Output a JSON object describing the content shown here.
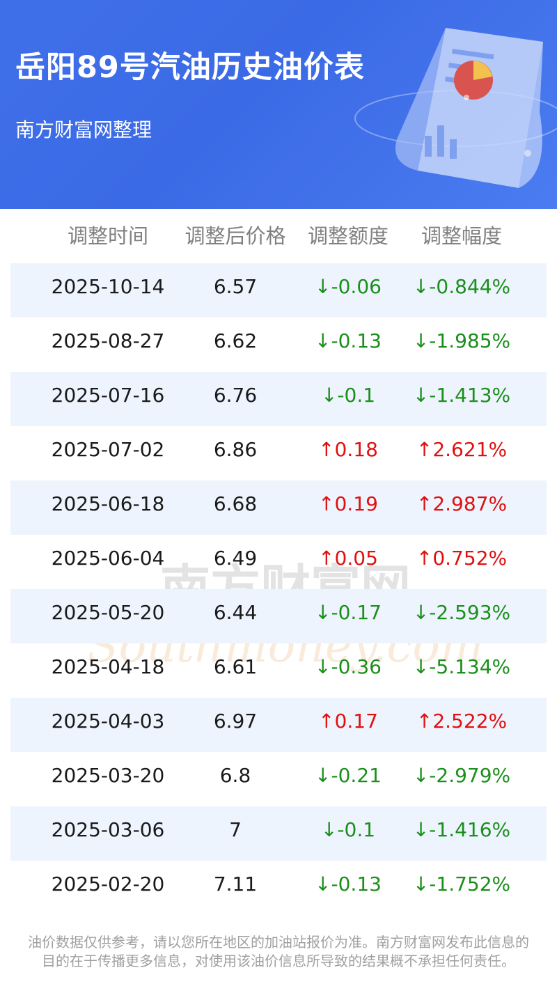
{
  "header": {
    "title": "岳阳89号汽油历史油价表",
    "subtitle": "南方财富网整理"
  },
  "columns": [
    "调整时间",
    "调整后价格",
    "调整额度",
    "调整幅度"
  ],
  "rows": [
    {
      "date": "2025-10-14",
      "price": "6.57",
      "change": "↓-0.06",
      "percent": "↓-0.844%",
      "direction": "down"
    },
    {
      "date": "2025-08-27",
      "price": "6.62",
      "change": "↓-0.13",
      "percent": "↓-1.985%",
      "direction": "down"
    },
    {
      "date": "2025-07-16",
      "price": "6.76",
      "change": "↓-0.1",
      "percent": "↓-1.413%",
      "direction": "down"
    },
    {
      "date": "2025-07-02",
      "price": "6.86",
      "change": "↑0.18",
      "percent": "↑2.621%",
      "direction": "up"
    },
    {
      "date": "2025-06-18",
      "price": "6.68",
      "change": "↑0.19",
      "percent": "↑2.987%",
      "direction": "up"
    },
    {
      "date": "2025-06-04",
      "price": "6.49",
      "change": "↑0.05",
      "percent": "↑0.752%",
      "direction": "up"
    },
    {
      "date": "2025-05-20",
      "price": "6.44",
      "change": "↓-0.17",
      "percent": "↓-2.593%",
      "direction": "down"
    },
    {
      "date": "2025-04-18",
      "price": "6.61",
      "change": "↓-0.36",
      "percent": "↓-5.134%",
      "direction": "down"
    },
    {
      "date": "2025-04-03",
      "price": "6.97",
      "change": "↑0.17",
      "percent": "↑2.522%",
      "direction": "up"
    },
    {
      "date": "2025-03-20",
      "price": "6.8",
      "change": "↓-0.21",
      "percent": "↓-2.979%",
      "direction": "down"
    },
    {
      "date": "2025-03-06",
      "price": "7",
      "change": "↓-0.1",
      "percent": "↓-1.416%",
      "direction": "down"
    },
    {
      "date": "2025-02-20",
      "price": "7.11",
      "change": "↓-0.13",
      "percent": "↓-1.752%",
      "direction": "down"
    }
  ],
  "watermark": {
    "cn": "南方财富网",
    "en": "Southmoney.com"
  },
  "footer": {
    "line1": "油价数据仅供参考，请以您所在地区的加油站报价为准。南方财富网发布此信息的",
    "line2": "目的在于传播更多信息，对使用该油价信息所导致的结果概不承担任何责任。"
  },
  "colors": {
    "header_blue": "#3f6fe8",
    "row_alt": "#eef4fe",
    "down": "#1b8f1b",
    "up": "#e01010"
  }
}
